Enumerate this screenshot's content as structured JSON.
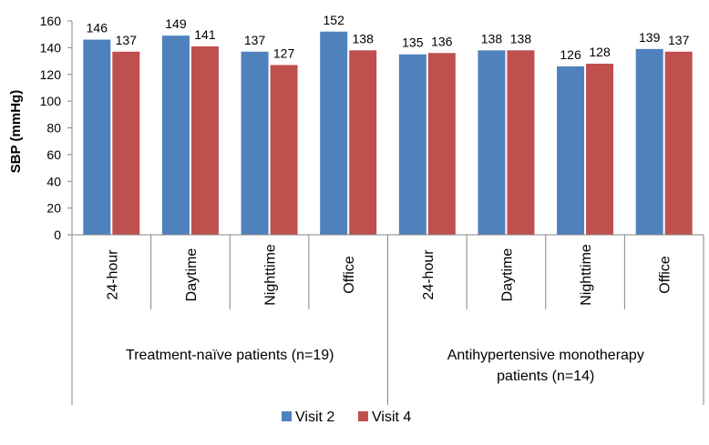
{
  "chart_data": {
    "type": "bar",
    "title": "",
    "xlabel": "",
    "ylabel": "SBP (mmHg)",
    "ylim": [
      0,
      160
    ],
    "yticks": [
      0,
      20,
      40,
      60,
      80,
      100,
      120,
      140,
      160
    ],
    "ytick_labels": [
      "0",
      "20",
      "40",
      "60",
      "80",
      "100",
      "120",
      "140",
      "160"
    ],
    "grid": false,
    "legend_position": "bottom",
    "categories": [
      "24-hour",
      "Daytime",
      "Nighttime",
      "Office",
      "24-hour",
      "Daytime",
      "Nighttime",
      "Office"
    ],
    "groups": [
      {
        "label": "Treatment-naïve patients (n=19)",
        "lines": [
          "Treatment-naïve patients (n=19)"
        ],
        "start": 0,
        "end": 3
      },
      {
        "label": "Antihypertensive monotherapy patients (n=14)",
        "lines": [
          "Antihypertensive monotherapy",
          "patients (n=14)"
        ],
        "start": 4,
        "end": 7
      }
    ],
    "series": [
      {
        "name": "Visit 2",
        "color": "#4F81BD",
        "values": [
          146,
          149,
          137,
          152,
          135,
          138,
          126,
          139
        ],
        "labels": [
          "146",
          "149",
          "137",
          "152",
          "135",
          "138",
          "126",
          "139"
        ]
      },
      {
        "name": "Visit 4",
        "color": "#C0504D",
        "values": [
          137,
          141,
          127,
          138,
          136,
          138,
          128,
          137
        ],
        "labels": [
          "137",
          "141",
          "127",
          "138",
          "136",
          "138",
          "128",
          "137"
        ]
      }
    ]
  }
}
